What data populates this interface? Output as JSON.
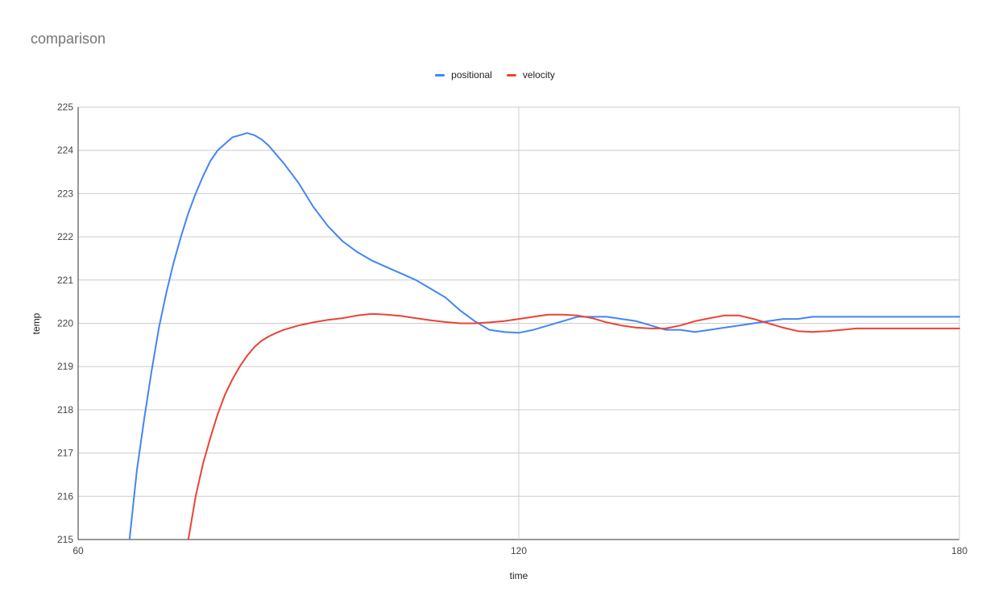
{
  "chart_data": {
    "type": "line",
    "title": "comparison",
    "xlabel": "time",
    "ylabel": "temp",
    "xlim": [
      60,
      180
    ],
    "ylim": [
      215,
      225
    ],
    "x_ticks": [
      60,
      120,
      180
    ],
    "y_ticks": [
      215,
      216,
      217,
      218,
      219,
      220,
      221,
      222,
      223,
      224,
      225
    ],
    "grid": true,
    "legend_position": "top",
    "series": [
      {
        "name": "positional",
        "color": "#4285f4",
        "x": [
          67,
          68,
          69,
          70,
          71,
          72,
          73,
          74,
          75,
          76,
          77,
          78,
          79,
          80,
          81,
          82,
          83,
          84,
          85,
          86,
          87,
          88,
          90,
          92,
          94,
          96,
          98,
          100,
          102,
          104,
          106,
          108,
          110,
          112,
          114,
          116,
          118,
          120,
          122,
          124,
          126,
          128,
          130,
          132,
          134,
          136,
          138,
          140,
          142,
          144,
          146,
          148,
          150,
          152,
          154,
          156,
          158,
          160,
          162,
          164,
          166,
          168,
          170,
          172,
          174,
          176,
          178,
          180
        ],
        "y": [
          215.0,
          216.6,
          217.8,
          218.9,
          219.9,
          220.7,
          221.4,
          222.0,
          222.55,
          223.0,
          223.4,
          223.75,
          224.0,
          224.15,
          224.3,
          224.35,
          224.4,
          224.35,
          224.25,
          224.1,
          223.9,
          223.7,
          223.25,
          222.7,
          222.25,
          221.9,
          221.65,
          221.45,
          221.3,
          221.15,
          221.0,
          220.8,
          220.6,
          220.3,
          220.05,
          219.85,
          219.8,
          219.78,
          219.85,
          219.95,
          220.05,
          220.15,
          220.15,
          220.15,
          220.1,
          220.05,
          219.95,
          219.85,
          219.85,
          219.8,
          219.85,
          219.9,
          219.95,
          220.0,
          220.05,
          220.1,
          220.1,
          220.15,
          220.15,
          220.15,
          220.15,
          220.15,
          220.15,
          220.15,
          220.15,
          220.15,
          220.15,
          220.15
        ]
      },
      {
        "name": "velocity",
        "color": "#ea4335",
        "x": [
          75,
          76,
          77,
          78,
          79,
          80,
          81,
          82,
          83,
          84,
          85,
          86,
          87,
          88,
          89,
          90,
          92,
          94,
          96,
          98,
          100,
          102,
          104,
          106,
          108,
          110,
          112,
          114,
          116,
          118,
          120,
          122,
          124,
          126,
          128,
          130,
          132,
          134,
          136,
          138,
          140,
          142,
          144,
          146,
          148,
          150,
          152,
          154,
          156,
          158,
          160,
          162,
          164,
          166,
          168,
          170,
          172,
          174,
          176,
          178,
          180
        ],
        "y": [
          215.0,
          216.0,
          216.75,
          217.35,
          217.9,
          218.35,
          218.7,
          219.0,
          219.25,
          219.45,
          219.6,
          219.7,
          219.78,
          219.85,
          219.9,
          219.95,
          220.02,
          220.08,
          220.12,
          220.18,
          220.22,
          220.2,
          220.17,
          220.12,
          220.07,
          220.03,
          220.0,
          220.0,
          220.02,
          220.05,
          220.1,
          220.15,
          220.2,
          220.2,
          220.18,
          220.12,
          220.02,
          219.95,
          219.9,
          219.88,
          219.88,
          219.95,
          220.05,
          220.12,
          220.18,
          220.18,
          220.1,
          220.0,
          219.9,
          219.82,
          219.8,
          219.82,
          219.85,
          219.88,
          219.88,
          219.88,
          219.88,
          219.88,
          219.88,
          219.88,
          219.88
        ]
      }
    ]
  }
}
